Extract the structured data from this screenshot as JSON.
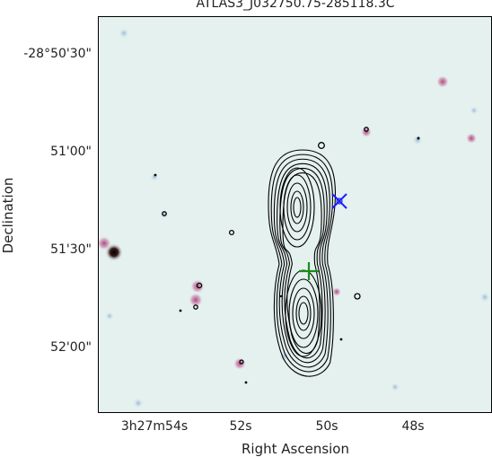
{
  "figure": {
    "title": "ATLAS3_J032750.75-285118.3C",
    "xlabel": "Right Ascension",
    "ylabel": "Declination",
    "yticks": [
      "-28°50'30\"",
      "51'00\"",
      "51'30\"",
      "52'00\""
    ],
    "xticks": [
      "3h27m54s",
      "52s",
      "50s",
      "48s"
    ]
  },
  "overlay": {
    "contour_color": "#000000",
    "cross_color": "#1a1aff",
    "plus_color": "#1a8c1a"
  }
}
